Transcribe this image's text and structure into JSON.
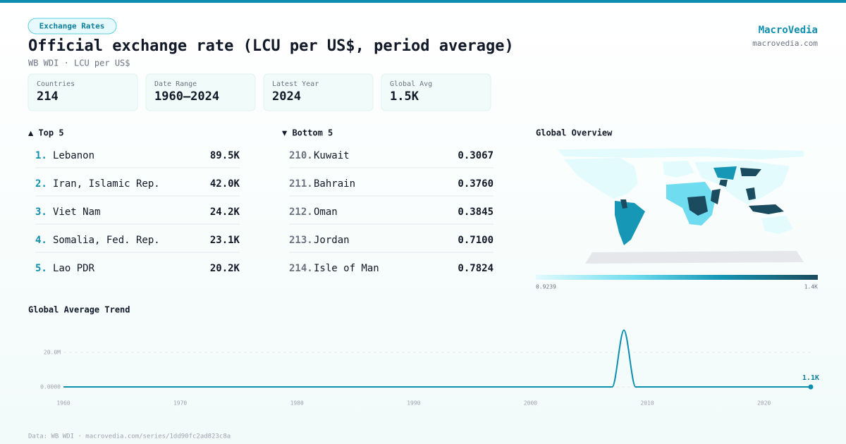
{
  "header": {
    "badge": "Exchange Rates",
    "title": "Official exchange rate (LCU per US$, period average)",
    "subtitle": "WB WDI · LCU per US$",
    "brand": "MacroVedia",
    "site": "macrovedia.com"
  },
  "stats": [
    {
      "label": "Countries",
      "value": "214"
    },
    {
      "label": "Date Range",
      "value": "1960–2024"
    },
    {
      "label": "Latest Year",
      "value": "2024"
    },
    {
      "label": "Global Avg",
      "value": "1.5K"
    }
  ],
  "top": {
    "title": "▲ Top 5",
    "rows": [
      {
        "rank": "1.",
        "name": "Lebanon",
        "value": "89.5K"
      },
      {
        "rank": "2.",
        "name": "Iran, Islamic Rep.",
        "value": "42.0K"
      },
      {
        "rank": "3.",
        "name": "Viet Nam",
        "value": "24.2K"
      },
      {
        "rank": "4.",
        "name": "Somalia, Fed. Rep.",
        "value": "23.1K"
      },
      {
        "rank": "5.",
        "name": "Lao PDR",
        "value": "20.2K"
      }
    ]
  },
  "bottom": {
    "title": "▼ Bottom 5",
    "rows": [
      {
        "rank": "210.",
        "name": "Kuwait",
        "value": "0.3067"
      },
      {
        "rank": "211.",
        "name": "Bahrain",
        "value": "0.3760"
      },
      {
        "rank": "212.",
        "name": "Oman",
        "value": "0.3845"
      },
      {
        "rank": "213.",
        "name": "Jordan",
        "value": "0.7100"
      },
      {
        "rank": "214.",
        "name": "Isle of Man",
        "value": "0.7824"
      }
    ]
  },
  "map": {
    "title": "Global Overview",
    "legend_min": "0.9239",
    "legend_max": "1.4K"
  },
  "chart_data": {
    "type": "line",
    "title": "Global Average Trend",
    "color": "#0e8fb0",
    "x": [
      1960,
      1961,
      1962,
      1963,
      1964,
      1965,
      1966,
      1967,
      1968,
      1969,
      1970,
      1971,
      1972,
      1973,
      1974,
      1975,
      1976,
      1977,
      1978,
      1979,
      1980,
      1981,
      1982,
      1983,
      1984,
      1985,
      1986,
      1987,
      1988,
      1989,
      1990,
      1991,
      1992,
      1993,
      1994,
      1995,
      1996,
      1997,
      1998,
      1999,
      2000,
      2001,
      2002,
      2003,
      2004,
      2005,
      2006,
      2007,
      2008,
      2009,
      2010,
      2011,
      2012,
      2013,
      2014,
      2015,
      2016,
      2017,
      2018,
      2019,
      2020,
      2021,
      2022,
      2023,
      2024
    ],
    "values": [
      40,
      40,
      45,
      45,
      50,
      50,
      55,
      55,
      60,
      60,
      65,
      70,
      75,
      80,
      90,
      100,
      110,
      120,
      130,
      140,
      150,
      170,
      190,
      210,
      240,
      270,
      300,
      330,
      360,
      400,
      450,
      500,
      550,
      600,
      650,
      700,
      720,
      740,
      760,
      780,
      800,
      820,
      840,
      860,
      880,
      900,
      920,
      950,
      33000000,
      980,
      1000,
      1000,
      1010,
      1020,
      1030,
      1040,
      1050,
      1060,
      1070,
      1080,
      1080,
      1090,
      1090,
      1100,
      1100
    ],
    "value_labels": [
      null,
      null,
      null,
      null,
      null,
      null,
      null,
      null,
      null,
      null,
      null,
      null,
      null,
      null,
      null,
      null,
      null,
      null,
      null,
      null,
      null,
      null,
      null,
      null,
      null,
      null,
      null,
      null,
      null,
      null,
      null,
      null,
      null,
      null,
      null,
      null,
      null,
      null,
      null,
      null,
      null,
      null,
      null,
      null,
      null,
      null,
      null,
      null,
      null,
      null,
      null,
      null,
      null,
      null,
      null,
      null,
      null,
      null,
      null,
      null,
      null,
      null,
      null,
      null,
      "1.1K"
    ],
    "xlim": [
      1960,
      2024
    ],
    "xticks": [
      1960,
      1970,
      1980,
      1990,
      2000,
      2010,
      2020
    ],
    "ylim": [
      0,
      36000000
    ],
    "yticks": [
      {
        "value": 0,
        "label": "0.0000"
      },
      {
        "value": 20000000,
        "label": "20.0M"
      }
    ],
    "grid": true
  },
  "footer": "Data: WB WDI · macrovedia.com/series/1dd90fc2ad823c8a"
}
